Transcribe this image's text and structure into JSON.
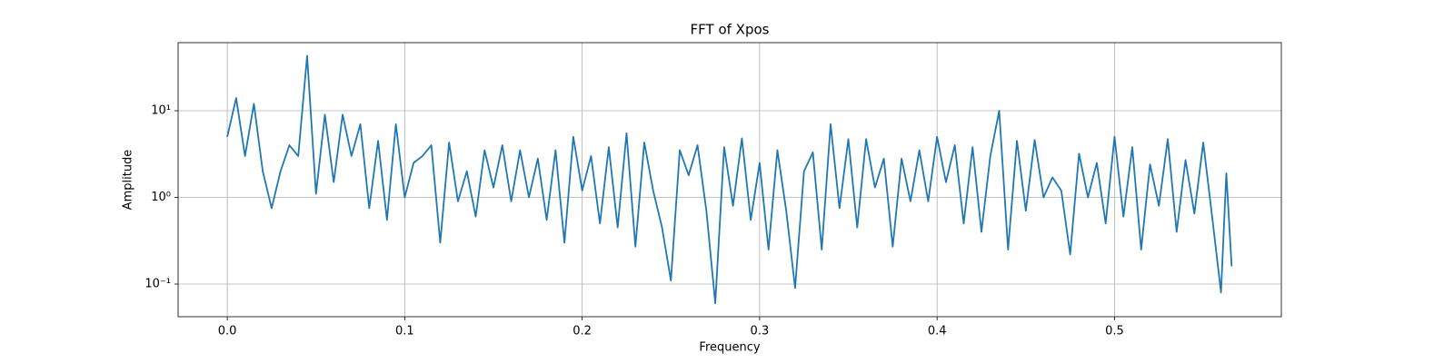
{
  "chart_data": {
    "type": "line",
    "title": "FFT of Xpos",
    "xlabel": "Frequency",
    "ylabel": "Amplitude",
    "x": [
      0,
      0.005,
      0.01,
      0.015,
      0.02,
      0.025,
      0.03,
      0.035,
      0.04,
      0.045,
      0.05,
      0.055,
      0.06,
      0.065,
      0.07,
      0.075,
      0.08,
      0.085,
      0.09,
      0.095,
      0.1,
      0.105,
      0.11,
      0.115,
      0.12,
      0.125,
      0.13,
      0.135,
      0.14,
      0.145,
      0.15,
      0.155,
      0.16,
      0.165,
      0.17,
      0.175,
      0.18,
      0.185,
      0.19,
      0.195,
      0.2,
      0.205,
      0.21,
      0.215,
      0.22,
      0.225,
      0.23,
      0.235,
      0.24,
      0.245,
      0.25,
      0.255,
      0.26,
      0.265,
      0.27,
      0.275,
      0.28,
      0.285,
      0.29,
      0.295,
      0.3,
      0.305,
      0.31,
      0.315,
      0.32,
      0.325,
      0.33,
      0.335,
      0.34,
      0.345,
      0.35,
      0.355,
      0.36,
      0.365,
      0.37,
      0.375,
      0.38,
      0.385,
      0.39,
      0.395,
      0.4,
      0.405,
      0.41,
      0.415,
      0.42,
      0.425,
      0.43,
      0.435,
      0.44,
      0.445,
      0.45,
      0.455,
      0.46,
      0.465,
      0.47,
      0.475,
      0.48,
      0.485,
      0.49,
      0.495,
      0.5,
      0.505,
      0.51,
      0.515,
      0.52,
      0.525,
      0.53,
      0.535,
      0.54,
      0.545,
      0.55,
      0.555,
      0.56,
      0.563,
      0.566
    ],
    "values": [
      5,
      14,
      3,
      12,
      2,
      0.75,
      2,
      4,
      3,
      43,
      1.1,
      9,
      1.5,
      9,
      3,
      7,
      0.75,
      4.5,
      0.55,
      7,
      1,
      2.5,
      3,
      4,
      0.3,
      4.3,
      0.9,
      2,
      0.6,
      3.5,
      1.3,
      4,
      0.9,
      3.5,
      1,
      2.8,
      0.55,
      3.5,
      0.3,
      5,
      1.2,
      3,
      0.5,
      3.8,
      0.45,
      5.5,
      0.27,
      4.3,
      1.2,
      0.45,
      0.11,
      3.5,
      1.8,
      4,
      0.7,
      0.06,
      3.8,
      0.8,
      4.8,
      0.55,
      2.5,
      0.25,
      3.5,
      0.7,
      0.09,
      2,
      3.3,
      0.25,
      7,
      0.75,
      4.7,
      0.45,
      4.7,
      1.3,
      2.8,
      0.27,
      2.8,
      0.9,
      3.5,
      0.9,
      5,
      1.5,
      4,
      0.5,
      3.8,
      0.4,
      3,
      10,
      0.25,
      4.5,
      0.7,
      4.6,
      1,
      1.7,
      1.2,
      0.22,
      3.2,
      1,
      2.5,
      0.5,
      5,
      0.6,
      3.8,
      0.25,
      2.4,
      0.8,
      4.7,
      0.4,
      2.7,
      0.65,
      4.3,
      0.6,
      0.08,
      1.9,
      0.16
    ],
    "color": "#1f77b4",
    "xlim": [
      -0.0277,
      0.594
    ],
    "ylim": [
      0.042,
      61
    ],
    "yscale": "log",
    "xticks": [
      {
        "value": 0,
        "label": "0.0"
      },
      0.1,
      0.2,
      0.3,
      0.4,
      0.5
    ],
    "yticks": [
      {
        "value": 0.1,
        "label": "10⁻¹"
      },
      {
        "value": 1,
        "label": "10⁰"
      },
      {
        "value": 10,
        "label": "10¹"
      }
    ],
    "grid": true
  }
}
